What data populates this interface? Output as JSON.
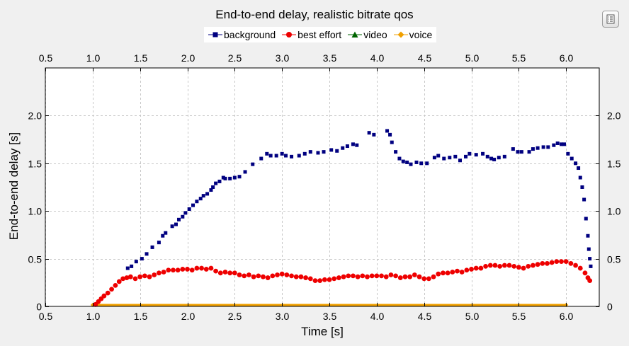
{
  "chart_data": {
    "type": "scatter",
    "title": "End-to-end delay, realistic bitrate qos",
    "xlabel": "Time [s]",
    "ylabel": "End-to-end delay [s]",
    "xlim": [
      0.5,
      6.35
    ],
    "ylim": [
      0,
      2.5
    ],
    "x_ticks": [
      0.5,
      1.0,
      1.5,
      2.0,
      2.5,
      3.0,
      3.5,
      4.0,
      4.5,
      5.0,
      5.5,
      6.0
    ],
    "x_tick_labels": [
      "0.5",
      "1.0",
      "1.5",
      "2.0",
      "2.5",
      "3.0",
      "3.5",
      "4.0",
      "4.5",
      "5.0",
      "5.5",
      "6.0"
    ],
    "y_ticks": [
      0,
      0.5,
      1.0,
      1.5,
      2.0
    ],
    "y_tick_labels": [
      "0",
      "0.5",
      "1.0",
      "1.5",
      "2.0"
    ],
    "grid": true,
    "legend_position": "top-center",
    "series": [
      {
        "name": "background",
        "color": "#000080",
        "marker": "square",
        "points": [
          [
            1.37,
            0.4
          ],
          [
            1.41,
            0.42
          ],
          [
            1.46,
            0.47
          ],
          [
            1.52,
            0.5
          ],
          [
            1.57,
            0.55
          ],
          [
            1.63,
            0.62
          ],
          [
            1.7,
            0.67
          ],
          [
            1.74,
            0.74
          ],
          [
            1.77,
            0.77
          ],
          [
            1.84,
            0.84
          ],
          [
            1.88,
            0.86
          ],
          [
            1.91,
            0.91
          ],
          [
            1.95,
            0.94
          ],
          [
            1.98,
            0.98
          ],
          [
            2.02,
            1.02
          ],
          [
            2.06,
            1.06
          ],
          [
            2.1,
            1.1
          ],
          [
            2.14,
            1.13
          ],
          [
            2.17,
            1.16
          ],
          [
            2.21,
            1.18
          ],
          [
            2.25,
            1.22
          ],
          [
            2.27,
            1.25
          ],
          [
            2.3,
            1.29
          ],
          [
            2.34,
            1.31
          ],
          [
            2.38,
            1.35
          ],
          [
            2.4,
            1.34
          ],
          [
            2.45,
            1.34
          ],
          [
            2.5,
            1.35
          ],
          [
            2.55,
            1.36
          ],
          [
            2.61,
            1.41
          ],
          [
            2.69,
            1.49
          ],
          [
            2.78,
            1.55
          ],
          [
            2.84,
            1.6
          ],
          [
            2.88,
            1.58
          ],
          [
            2.94,
            1.58
          ],
          [
            3.0,
            1.6
          ],
          [
            3.04,
            1.58
          ],
          [
            3.1,
            1.57
          ],
          [
            3.18,
            1.58
          ],
          [
            3.24,
            1.6
          ],
          [
            3.3,
            1.62
          ],
          [
            3.38,
            1.61
          ],
          [
            3.44,
            1.62
          ],
          [
            3.52,
            1.64
          ],
          [
            3.58,
            1.63
          ],
          [
            3.64,
            1.66
          ],
          [
            3.69,
            1.68
          ],
          [
            3.75,
            1.7
          ],
          [
            3.79,
            1.69
          ],
          [
            3.92,
            1.82
          ],
          [
            3.97,
            1.8
          ],
          [
            4.11,
            1.84
          ],
          [
            4.14,
            1.8
          ],
          [
            4.16,
            1.72
          ],
          [
            4.2,
            1.62
          ],
          [
            4.24,
            1.55
          ],
          [
            4.28,
            1.52
          ],
          [
            4.32,
            1.51
          ],
          [
            4.36,
            1.49
          ],
          [
            4.42,
            1.51
          ],
          [
            4.47,
            1.5
          ],
          [
            4.53,
            1.5
          ],
          [
            4.61,
            1.56
          ],
          [
            4.65,
            1.58
          ],
          [
            4.71,
            1.55
          ],
          [
            4.77,
            1.56
          ],
          [
            4.83,
            1.57
          ],
          [
            4.88,
            1.53
          ],
          [
            4.94,
            1.57
          ],
          [
            4.98,
            1.6
          ],
          [
            5.05,
            1.59
          ],
          [
            5.12,
            1.6
          ],
          [
            5.17,
            1.57
          ],
          [
            5.21,
            1.55
          ],
          [
            5.24,
            1.54
          ],
          [
            5.29,
            1.56
          ],
          [
            5.35,
            1.57
          ],
          [
            5.44,
            1.65
          ],
          [
            5.49,
            1.62
          ],
          [
            5.53,
            1.62
          ],
          [
            5.61,
            1.62
          ],
          [
            5.65,
            1.65
          ],
          [
            5.7,
            1.66
          ],
          [
            5.76,
            1.67
          ],
          [
            5.81,
            1.67
          ],
          [
            5.87,
            1.69
          ],
          [
            5.91,
            1.71
          ],
          [
            5.95,
            1.7
          ],
          [
            5.98,
            1.7
          ],
          [
            6.02,
            1.6
          ],
          [
            6.06,
            1.55
          ],
          [
            6.1,
            1.5
          ],
          [
            6.13,
            1.45
          ],
          [
            6.15,
            1.35
          ],
          [
            6.17,
            1.25
          ],
          [
            6.19,
            1.12
          ],
          [
            6.21,
            0.92
          ],
          [
            6.23,
            0.74
          ],
          [
            6.24,
            0.6
          ],
          [
            6.25,
            0.5
          ],
          [
            6.26,
            0.42
          ]
        ]
      },
      {
        "name": "best effort",
        "color": "#ee0000",
        "marker": "circle",
        "points": [
          [
            1.03,
            0.02
          ],
          [
            1.06,
            0.05
          ],
          [
            1.09,
            0.08
          ],
          [
            1.12,
            0.11
          ],
          [
            1.16,
            0.14
          ],
          [
            1.2,
            0.18
          ],
          [
            1.24,
            0.22
          ],
          [
            1.28,
            0.26
          ],
          [
            1.32,
            0.29
          ],
          [
            1.36,
            0.3
          ],
          [
            1.4,
            0.31
          ],
          [
            1.45,
            0.29
          ],
          [
            1.5,
            0.31
          ],
          [
            1.55,
            0.32
          ],
          [
            1.6,
            0.31
          ],
          [
            1.65,
            0.33
          ],
          [
            1.7,
            0.35
          ],
          [
            1.75,
            0.36
          ],
          [
            1.8,
            0.38
          ],
          [
            1.85,
            0.38
          ],
          [
            1.9,
            0.38
          ],
          [
            1.95,
            0.39
          ],
          [
            2.0,
            0.39
          ],
          [
            2.05,
            0.38
          ],
          [
            2.1,
            0.4
          ],
          [
            2.15,
            0.4
          ],
          [
            2.2,
            0.39
          ],
          [
            2.25,
            0.4
          ],
          [
            2.3,
            0.37
          ],
          [
            2.35,
            0.35
          ],
          [
            2.4,
            0.36
          ],
          [
            2.45,
            0.35
          ],
          [
            2.5,
            0.35
          ],
          [
            2.55,
            0.33
          ],
          [
            2.6,
            0.32
          ],
          [
            2.65,
            0.33
          ],
          [
            2.7,
            0.31
          ],
          [
            2.75,
            0.32
          ],
          [
            2.8,
            0.31
          ],
          [
            2.85,
            0.3
          ],
          [
            2.9,
            0.32
          ],
          [
            2.95,
            0.33
          ],
          [
            3.0,
            0.34
          ],
          [
            3.05,
            0.33
          ],
          [
            3.1,
            0.32
          ],
          [
            3.15,
            0.31
          ],
          [
            3.2,
            0.31
          ],
          [
            3.25,
            0.3
          ],
          [
            3.3,
            0.29
          ],
          [
            3.35,
            0.27
          ],
          [
            3.4,
            0.27
          ],
          [
            3.45,
            0.28
          ],
          [
            3.5,
            0.28
          ],
          [
            3.55,
            0.29
          ],
          [
            3.6,
            0.3
          ],
          [
            3.65,
            0.31
          ],
          [
            3.7,
            0.32
          ],
          [
            3.75,
            0.32
          ],
          [
            3.8,
            0.31
          ],
          [
            3.85,
            0.32
          ],
          [
            3.9,
            0.31
          ],
          [
            3.95,
            0.32
          ],
          [
            4.0,
            0.32
          ],
          [
            4.05,
            0.32
          ],
          [
            4.1,
            0.31
          ],
          [
            4.15,
            0.33
          ],
          [
            4.2,
            0.32
          ],
          [
            4.25,
            0.3
          ],
          [
            4.3,
            0.31
          ],
          [
            4.35,
            0.31
          ],
          [
            4.4,
            0.33
          ],
          [
            4.45,
            0.31
          ],
          [
            4.5,
            0.29
          ],
          [
            4.55,
            0.29
          ],
          [
            4.6,
            0.31
          ],
          [
            4.65,
            0.34
          ],
          [
            4.7,
            0.35
          ],
          [
            4.75,
            0.35
          ],
          [
            4.8,
            0.36
          ],
          [
            4.85,
            0.37
          ],
          [
            4.9,
            0.36
          ],
          [
            4.95,
            0.38
          ],
          [
            5.0,
            0.39
          ],
          [
            5.05,
            0.4
          ],
          [
            5.1,
            0.4
          ],
          [
            5.15,
            0.42
          ],
          [
            5.2,
            0.43
          ],
          [
            5.25,
            0.43
          ],
          [
            5.3,
            0.42
          ],
          [
            5.35,
            0.43
          ],
          [
            5.4,
            0.43
          ],
          [
            5.45,
            0.42
          ],
          [
            5.5,
            0.41
          ],
          [
            5.55,
            0.4
          ],
          [
            5.6,
            0.42
          ],
          [
            5.65,
            0.43
          ],
          [
            5.7,
            0.44
          ],
          [
            5.75,
            0.45
          ],
          [
            5.8,
            0.45
          ],
          [
            5.85,
            0.46
          ],
          [
            5.9,
            0.47
          ],
          [
            5.95,
            0.47
          ],
          [
            6.0,
            0.47
          ],
          [
            6.05,
            0.45
          ],
          [
            6.1,
            0.43
          ],
          [
            6.15,
            0.4
          ],
          [
            6.2,
            0.35
          ],
          [
            6.23,
            0.3
          ],
          [
            6.25,
            0.27
          ]
        ]
      },
      {
        "name": "video",
        "color": "#006400",
        "marker": "triangle",
        "points": []
      },
      {
        "name": "voice",
        "color": "#f0a000",
        "marker": "diamond",
        "points": [
          [
            1.0,
            0.015
          ],
          [
            6.0,
            0.015
          ]
        ]
      }
    ]
  }
}
